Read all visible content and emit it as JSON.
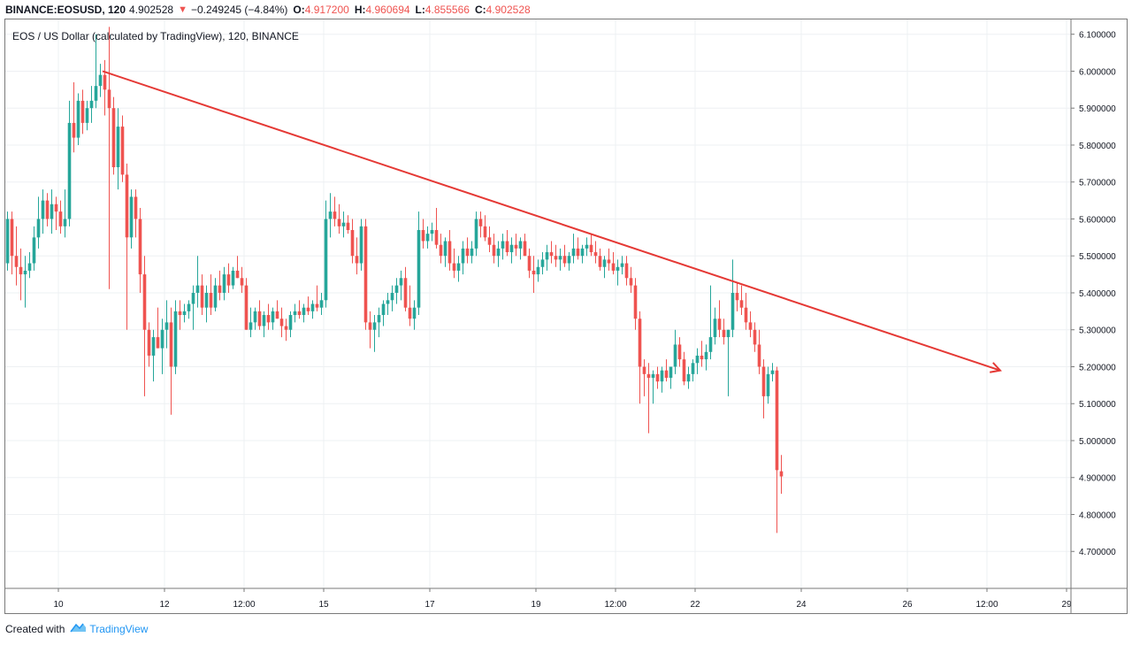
{
  "header": {
    "symbol_line": "BINANCE:EOSUSD, 120",
    "last": "4.902528",
    "change": "−0.249245 (−4.84%)",
    "o_label": "O:",
    "o_value": "4.917200",
    "h_label": "H:",
    "h_value": "4.960694",
    "l_label": "L:",
    "l_value": "4.855566",
    "c_label": "C:",
    "c_value": "4.902528",
    "down_arrow": "▼"
  },
  "chart_title": "EOS / US Dollar (calculated by TradingView), 120, BINANCE",
  "footer": {
    "created_with": "Created with",
    "brand": "TradingView",
    "logo_icon": "tradingview-cloud-icon"
  },
  "colors": {
    "up": "#26a69a",
    "down": "#ef5350",
    "trendline": "#e53935",
    "grid": "#eef0f3",
    "axis_text": "#131722"
  },
  "chart_data": {
    "type": "candlestick",
    "title": "EOS / US Dollar (calculated by TradingView), 120, BINANCE",
    "interval": "120",
    "xlabel": "",
    "ylabel": "",
    "y_ticks": [
      "6.100000",
      "6.000000",
      "5.900000",
      "5.800000",
      "5.700000",
      "5.600000",
      "5.500000",
      "5.400000",
      "5.300000",
      "5.200000",
      "5.100000",
      "5.000000",
      "4.900000",
      "4.800000",
      "4.700000"
    ],
    "y_tick_values": [
      6.1,
      6.0,
      5.9,
      5.8,
      5.7,
      5.6,
      5.5,
      5.4,
      5.3,
      5.2,
      5.1,
      5.0,
      4.9,
      4.8,
      4.7
    ],
    "x_ticks": [
      {
        "label": "10",
        "t": 12
      },
      {
        "label": "12",
        "t": 36
      },
      {
        "label": "12:00",
        "t": 54
      },
      {
        "label": "15",
        "t": 72
      },
      {
        "label": "17",
        "t": 96
      },
      {
        "label": "19",
        "t": 120
      },
      {
        "label": "12:00",
        "t": 138
      },
      {
        "label": "22",
        "t": 156
      },
      {
        "label": "24",
        "t": 180
      },
      {
        "label": "26",
        "t": 204
      },
      {
        "label": "12:00",
        "t": 222
      },
      {
        "label": "29",
        "t": 240
      }
    ],
    "x_range": [
      0,
      241
    ],
    "ylim": [
      4.6,
      6.14
    ],
    "grid": true,
    "trendline": {
      "start": {
        "t": 22,
        "price": 6.0
      },
      "end": {
        "t": 225,
        "price": 5.19
      }
    },
    "candles": [
      [
        0,
        5.48,
        5.62,
        5.46,
        5.6
      ],
      [
        1,
        5.6,
        5.62,
        5.45,
        5.5
      ],
      [
        2,
        5.5,
        5.58,
        5.42,
        5.47
      ],
      [
        3,
        5.47,
        5.52,
        5.38,
        5.45
      ],
      [
        4,
        5.45,
        5.5,
        5.36,
        5.46
      ],
      [
        5,
        5.46,
        5.51,
        5.44,
        5.48
      ],
      [
        6,
        5.48,
        5.58,
        5.46,
        5.55
      ],
      [
        7,
        5.55,
        5.66,
        5.52,
        5.6
      ],
      [
        8,
        5.6,
        5.68,
        5.56,
        5.65
      ],
      [
        9,
        5.65,
        5.67,
        5.58,
        5.6
      ],
      [
        10,
        5.6,
        5.68,
        5.56,
        5.64
      ],
      [
        11,
        5.64,
        5.66,
        5.57,
        5.62
      ],
      [
        12,
        5.62,
        5.65,
        5.56,
        5.58
      ],
      [
        13,
        5.58,
        5.68,
        5.55,
        5.6
      ],
      [
        14,
        5.6,
        5.92,
        5.58,
        5.86
      ],
      [
        15,
        5.86,
        5.97,
        5.78,
        5.82
      ],
      [
        16,
        5.82,
        5.94,
        5.8,
        5.92
      ],
      [
        17,
        5.92,
        5.95,
        5.83,
        5.86
      ],
      [
        18,
        5.86,
        5.92,
        5.84,
        5.9
      ],
      [
        19,
        5.9,
        5.96,
        5.86,
        5.92
      ],
      [
        20,
        5.92,
        6.1,
        5.9,
        5.96
      ],
      [
        21,
        5.96,
        6.02,
        5.93,
        5.99
      ],
      [
        22,
        5.99,
        6.03,
        5.88,
        5.95
      ],
      [
        23,
        5.95,
        6.12,
        5.41,
        5.9
      ],
      [
        24,
        5.9,
        5.93,
        5.72,
        5.74
      ],
      [
        25,
        5.74,
        5.9,
        5.68,
        5.85
      ],
      [
        26,
        5.85,
        5.88,
        5.7,
        5.72
      ],
      [
        27,
        5.72,
        5.75,
        5.3,
        5.55
      ],
      [
        28,
        5.55,
        5.68,
        5.52,
        5.66
      ],
      [
        29,
        5.66,
        5.68,
        5.55,
        5.6
      ],
      [
        30,
        5.6,
        5.63,
        5.4,
        5.45
      ],
      [
        31,
        5.45,
        5.5,
        5.12,
        5.3
      ],
      [
        32,
        5.3,
        5.32,
        5.2,
        5.23
      ],
      [
        33,
        5.23,
        5.3,
        5.16,
        5.28
      ],
      [
        34,
        5.28,
        5.36,
        5.25,
        5.25
      ],
      [
        35,
        5.25,
        5.33,
        5.18,
        5.3
      ],
      [
        36,
        5.3,
        5.38,
        5.25,
        5.32
      ],
      [
        37,
        5.32,
        5.36,
        5.07,
        5.2
      ],
      [
        38,
        5.2,
        5.38,
        5.18,
        5.35
      ],
      [
        39,
        5.35,
        5.38,
        5.3,
        5.34
      ],
      [
        40,
        5.34,
        5.37,
        5.32,
        5.35
      ],
      [
        41,
        5.35,
        5.38,
        5.33,
        5.37
      ],
      [
        42,
        5.37,
        5.42,
        5.3,
        5.4
      ],
      [
        43,
        5.4,
        5.5,
        5.36,
        5.42
      ],
      [
        44,
        5.42,
        5.45,
        5.34,
        5.36
      ],
      [
        45,
        5.36,
        5.42,
        5.32,
        5.4
      ],
      [
        46,
        5.4,
        5.45,
        5.34,
        5.36
      ],
      [
        47,
        5.36,
        5.44,
        5.35,
        5.42
      ],
      [
        48,
        5.42,
        5.46,
        5.38,
        5.4
      ],
      [
        49,
        5.4,
        5.47,
        5.38,
        5.45
      ],
      [
        50,
        5.45,
        5.48,
        5.4,
        5.42
      ],
      [
        51,
        5.42,
        5.47,
        5.41,
        5.46
      ],
      [
        52,
        5.46,
        5.5,
        5.44,
        5.44
      ],
      [
        53,
        5.44,
        5.47,
        5.4,
        5.42
      ],
      [
        54,
        5.42,
        5.44,
        5.3,
        5.3
      ],
      [
        55,
        5.3,
        5.36,
        5.28,
        5.32
      ],
      [
        56,
        5.32,
        5.36,
        5.3,
        5.35
      ],
      [
        57,
        5.35,
        5.38,
        5.3,
        5.31
      ],
      [
        58,
        5.31,
        5.35,
        5.28,
        5.34
      ],
      [
        59,
        5.34,
        5.37,
        5.3,
        5.32
      ],
      [
        60,
        5.32,
        5.36,
        5.3,
        5.35
      ],
      [
        61,
        5.35,
        5.38,
        5.33,
        5.33
      ],
      [
        62,
        5.33,
        5.36,
        5.28,
        5.31
      ],
      [
        63,
        5.31,
        5.33,
        5.27,
        5.3
      ],
      [
        64,
        5.3,
        5.35,
        5.28,
        5.34
      ],
      [
        65,
        5.34,
        5.37,
        5.32,
        5.35
      ],
      [
        66,
        5.35,
        5.38,
        5.33,
        5.34
      ],
      [
        67,
        5.34,
        5.37,
        5.32,
        5.36
      ],
      [
        68,
        5.36,
        5.39,
        5.34,
        5.35
      ],
      [
        69,
        5.35,
        5.38,
        5.33,
        5.37
      ],
      [
        70,
        5.37,
        5.42,
        5.35,
        5.36
      ],
      [
        71,
        5.36,
        5.4,
        5.34,
        5.38
      ],
      [
        72,
        5.38,
        5.65,
        5.36,
        5.6
      ],
      [
        73,
        5.6,
        5.67,
        5.55,
        5.62
      ],
      [
        74,
        5.62,
        5.66,
        5.58,
        5.6
      ],
      [
        75,
        5.6,
        5.64,
        5.56,
        5.58
      ],
      [
        76,
        5.58,
        5.62,
        5.55,
        5.59
      ],
      [
        77,
        5.59,
        5.61,
        5.56,
        5.57
      ],
      [
        78,
        5.57,
        5.6,
        5.48,
        5.5
      ],
      [
        79,
        5.5,
        5.55,
        5.45,
        5.48
      ],
      [
        80,
        5.48,
        5.6,
        5.46,
        5.58
      ],
      [
        81,
        5.58,
        5.6,
        5.3,
        5.32
      ],
      [
        82,
        5.32,
        5.35,
        5.25,
        5.3
      ],
      [
        83,
        5.3,
        5.34,
        5.24,
        5.32
      ],
      [
        84,
        5.32,
        5.36,
        5.28,
        5.34
      ],
      [
        85,
        5.34,
        5.38,
        5.31,
        5.37
      ],
      [
        86,
        5.37,
        5.4,
        5.34,
        5.38
      ],
      [
        87,
        5.38,
        5.42,
        5.35,
        5.4
      ],
      [
        88,
        5.4,
        5.44,
        5.37,
        5.42
      ],
      [
        89,
        5.42,
        5.46,
        5.38,
        5.44
      ],
      [
        90,
        5.44,
        5.47,
        5.35,
        5.36
      ],
      [
        91,
        5.36,
        5.42,
        5.31,
        5.33
      ],
      [
        92,
        5.33,
        5.38,
        5.3,
        5.36
      ],
      [
        93,
        5.36,
        5.62,
        5.34,
        5.57
      ],
      [
        94,
        5.57,
        5.6,
        5.52,
        5.54
      ],
      [
        95,
        5.54,
        5.58,
        5.52,
        5.56
      ],
      [
        96,
        5.56,
        5.59,
        5.54,
        5.57
      ],
      [
        97,
        5.57,
        5.63,
        5.52,
        5.53
      ],
      [
        98,
        5.53,
        5.56,
        5.48,
        5.5
      ],
      [
        99,
        5.5,
        5.55,
        5.47,
        5.54
      ],
      [
        100,
        5.54,
        5.57,
        5.46,
        5.48
      ],
      [
        101,
        5.48,
        5.52,
        5.44,
        5.46
      ],
      [
        102,
        5.46,
        5.5,
        5.43,
        5.48
      ],
      [
        103,
        5.48,
        5.54,
        5.45,
        5.52
      ],
      [
        104,
        5.52,
        5.55,
        5.48,
        5.5
      ],
      [
        105,
        5.5,
        5.54,
        5.48,
        5.52
      ],
      [
        106,
        5.52,
        5.62,
        5.5,
        5.6
      ],
      [
        107,
        5.6,
        5.62,
        5.55,
        5.58
      ],
      [
        108,
        5.58,
        5.61,
        5.54,
        5.55
      ],
      [
        109,
        5.55,
        5.58,
        5.51,
        5.53
      ],
      [
        110,
        5.53,
        5.56,
        5.48,
        5.5
      ],
      [
        111,
        5.5,
        5.54,
        5.47,
        5.52
      ],
      [
        112,
        5.52,
        5.56,
        5.49,
        5.54
      ],
      [
        113,
        5.54,
        5.57,
        5.5,
        5.51
      ],
      [
        114,
        5.51,
        5.55,
        5.48,
        5.53
      ],
      [
        115,
        5.53,
        5.56,
        5.5,
        5.52
      ],
      [
        116,
        5.52,
        5.55,
        5.49,
        5.54
      ],
      [
        117,
        5.54,
        5.56,
        5.5,
        5.5
      ],
      [
        118,
        5.5,
        5.52,
        5.44,
        5.46
      ],
      [
        119,
        5.46,
        5.5,
        5.4,
        5.45
      ],
      [
        120,
        5.45,
        5.49,
        5.43,
        5.47
      ],
      [
        121,
        5.47,
        5.51,
        5.45,
        5.49
      ],
      [
        122,
        5.49,
        5.53,
        5.46,
        5.51
      ],
      [
        123,
        5.51,
        5.54,
        5.48,
        5.5
      ],
      [
        124,
        5.5,
        5.53,
        5.47,
        5.49
      ],
      [
        125,
        5.49,
        5.52,
        5.46,
        5.5
      ],
      [
        126,
        5.5,
        5.53,
        5.47,
        5.48
      ],
      [
        127,
        5.48,
        5.51,
        5.46,
        5.5
      ],
      [
        128,
        5.5,
        5.56,
        5.48,
        5.52
      ],
      [
        129,
        5.52,
        5.55,
        5.49,
        5.5
      ],
      [
        130,
        5.5,
        5.53,
        5.48,
        5.52
      ],
      [
        131,
        5.52,
        5.55,
        5.5,
        5.53
      ],
      [
        132,
        5.53,
        5.56,
        5.5,
        5.51
      ],
      [
        133,
        5.51,
        5.54,
        5.48,
        5.5
      ],
      [
        134,
        5.5,
        5.52,
        5.46,
        5.47
      ],
      [
        135,
        5.47,
        5.5,
        5.44,
        5.49
      ],
      [
        136,
        5.49,
        5.52,
        5.46,
        5.48
      ],
      [
        137,
        5.48,
        5.51,
        5.45,
        5.46
      ],
      [
        138,
        5.46,
        5.49,
        5.42,
        5.47
      ],
      [
        139,
        5.47,
        5.5,
        5.45,
        5.48
      ],
      [
        140,
        5.48,
        5.5,
        5.42,
        5.44
      ],
      [
        141,
        5.44,
        5.47,
        5.4,
        5.42
      ],
      [
        142,
        5.42,
        5.44,
        5.3,
        5.33
      ],
      [
        143,
        5.33,
        5.35,
        5.1,
        5.2
      ],
      [
        144,
        5.2,
        5.22,
        5.12,
        5.18
      ],
      [
        145,
        5.18,
        5.21,
        5.02,
        5.17
      ],
      [
        146,
        5.17,
        5.19,
        5.1,
        5.18
      ],
      [
        147,
        5.18,
        5.2,
        5.14,
        5.16
      ],
      [
        148,
        5.16,
        5.2,
        5.13,
        5.19
      ],
      [
        149,
        5.19,
        5.22,
        5.16,
        5.17
      ],
      [
        150,
        5.17,
        5.2,
        5.14,
        5.2
      ],
      [
        151,
        5.2,
        5.3,
        5.18,
        5.26
      ],
      [
        152,
        5.26,
        5.28,
        5.2,
        5.22
      ],
      [
        153,
        5.22,
        5.24,
        5.15,
        5.16
      ],
      [
        154,
        5.16,
        5.2,
        5.14,
        5.18
      ],
      [
        155,
        5.18,
        5.22,
        5.16,
        5.21
      ],
      [
        156,
        5.21,
        5.25,
        5.18,
        5.23
      ],
      [
        157,
        5.23,
        5.27,
        5.2,
        5.22
      ],
      [
        158,
        5.22,
        5.26,
        5.19,
        5.24
      ],
      [
        159,
        5.24,
        5.42,
        5.22,
        5.28
      ],
      [
        160,
        5.28,
        5.36,
        5.26,
        5.33
      ],
      [
        161,
        5.33,
        5.38,
        5.28,
        5.3
      ],
      [
        162,
        5.3,
        5.33,
        5.26,
        5.28
      ],
      [
        163,
        5.28,
        5.3,
        5.12,
        5.3
      ],
      [
        164,
        5.3,
        5.49,
        5.28,
        5.4
      ],
      [
        165,
        5.4,
        5.43,
        5.35,
        5.38
      ],
      [
        166,
        5.38,
        5.42,
        5.34,
        5.36
      ],
      [
        167,
        5.36,
        5.4,
        5.3,
        5.32
      ],
      [
        168,
        5.32,
        5.35,
        5.28,
        5.3
      ],
      [
        169,
        5.3,
        5.32,
        5.24,
        5.26
      ],
      [
        170,
        5.26,
        5.3,
        5.18,
        5.2
      ],
      [
        171,
        5.2,
        5.22,
        5.06,
        5.12
      ],
      [
        172,
        5.12,
        5.2,
        5.1,
        5.18
      ],
      [
        173,
        5.18,
        5.21,
        5.16,
        5.19
      ],
      [
        174,
        5.19,
        5.2,
        4.75,
        4.92
      ],
      [
        175,
        4.917,
        4.961,
        4.856,
        4.903
      ]
    ]
  }
}
